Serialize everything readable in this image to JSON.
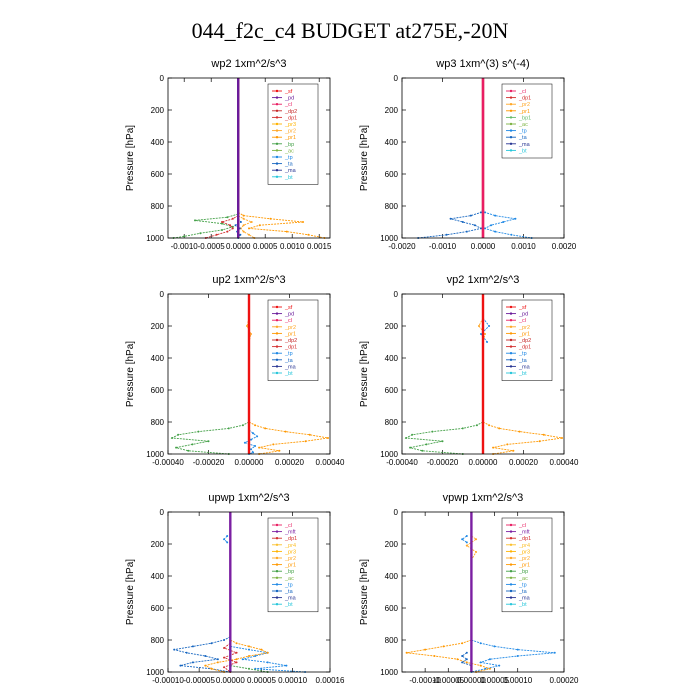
{
  "page": {
    "title": "044_f2c_c4  BUDGET at275E,-20N"
  },
  "colors": {
    "sf": "#ee1111",
    "pd": "#6a1b9a",
    "cl": "#e91e63",
    "dp1": "#d32f2f",
    "dp2": "#c62828",
    "pr1": "#ff9800",
    "pr2": "#ffa726",
    "pr3": "#ffb300",
    "pr4": "#fbc02d",
    "bp": "#43a047",
    "bp1": "#66bb6a",
    "ac": "#7cb342",
    "tp": "#1e88e5",
    "ta": "#1565c0",
    "ma": "#283593",
    "bt": "#26c6da",
    "mft": "#7b1fa2"
  },
  "chart_data": [
    {
      "id": "wp2",
      "type": "line",
      "title": "wp2   1xm^2/s^3",
      "ylabel": "Pressure [hPa]",
      "xlim": [
        -0.0013,
        0.0017
      ],
      "ylim": [
        1000,
        0
      ],
      "xticks": [
        "-0.0010",
        "-0.0005",
        "0.0000",
        "0.0005",
        "0.0010",
        "0.0015"
      ],
      "xtick_values": [
        -0.001,
        -0.0005,
        0,
        0.0005,
        0.001,
        0.0015
      ],
      "yticks": [
        0,
        200,
        400,
        600,
        800,
        1000
      ],
      "legend": [
        "_sf",
        "_pd",
        "_cl",
        "_dp2",
        "_dp1",
        "_pr3",
        "_pr2",
        "_pr1",
        "_bp",
        "_ac",
        "_tp",
        "_ta",
        "_ma",
        "_bt"
      ],
      "series": [
        {
          "key": "pr1",
          "y": [
            840,
            860,
            880,
            900,
            920,
            940,
            960,
            980,
            1000
          ],
          "x": [
            0,
            0.0001,
            0.0006,
            0.0012,
            0.0004,
            0.0002,
            0.0009,
            0.0013,
            0.0016
          ]
        },
        {
          "key": "bp",
          "y": [
            850,
            870,
            890,
            910,
            930,
            950,
            970,
            990,
            1000
          ],
          "x": [
            0,
            -0.0002,
            -0.0008,
            -0.0003,
            -0.0001,
            -0.0003,
            -0.0007,
            -0.001,
            -0.0012
          ]
        },
        {
          "key": "dp1",
          "y": [
            860,
            880,
            900,
            920,
            940,
            960,
            980,
            1000
          ],
          "x": [
            0,
            -0.0001,
            -0.0003,
            -0.00015,
            -0.0001,
            -0.0002,
            -0.0004,
            -0.0006
          ]
        },
        {
          "key": "pr2",
          "y": [
            860,
            880,
            900,
            920,
            940,
            960,
            980,
            1000
          ],
          "x": [
            0,
            0.0001,
            0.00025,
            0.0001,
            5e-05,
            0.0001,
            0.0002,
            0.0003
          ]
        },
        {
          "key": "ta",
          "y": [
            880,
            900,
            920,
            940,
            960,
            980,
            1000
          ],
          "x": [
            0,
            5e-05,
            -5e-05,
            3e-05,
            -2e-05,
            4e-05,
            0
          ]
        },
        {
          "key": "sf",
          "y": [
            0,
            200,
            400,
            600,
            800,
            1000
          ],
          "x": [
            0,
            0,
            0,
            0,
            0,
            0
          ]
        },
        {
          "key": "pd",
          "y": [
            0,
            200,
            400,
            600,
            800,
            1000
          ],
          "x": [
            0,
            0,
            0,
            0,
            0,
            0
          ]
        }
      ]
    },
    {
      "id": "wp3",
      "type": "line",
      "title": "wp3   1xm^(3) s^(-4)",
      "ylabel": "Pressure [hPa]",
      "xlim": [
        -0.002,
        0.002
      ],
      "ylim": [
        1000,
        0
      ],
      "xticks": [
        "-0.0020",
        "-0.0010",
        "0.0000",
        "0.0010",
        "0.0020"
      ],
      "xtick_values": [
        -0.002,
        -0.001,
        0,
        0.001,
        0.002
      ],
      "yticks": [
        0,
        200,
        400,
        600,
        800,
        1000
      ],
      "legend": [
        "_cl",
        "_dp1",
        "_pr2",
        "_pr1",
        "_bp1",
        "_ac",
        "_tp",
        "_ta",
        "_ma",
        "_bt"
      ],
      "series": [
        {
          "key": "tp",
          "y": [
            820,
            840,
            860,
            880,
            900,
            920,
            940,
            960,
            980,
            1000
          ],
          "x": [
            0,
            5e-05,
            0.0003,
            0.0008,
            0.0005,
            0.0002,
            5e-05,
            0.0003,
            0.0007,
            0.0012
          ]
        },
        {
          "key": "ta",
          "y": [
            820,
            840,
            860,
            880,
            900,
            920,
            940,
            960,
            980,
            1000
          ],
          "x": [
            0,
            -5e-05,
            -0.0003,
            -0.0008,
            -0.0005,
            -0.0002,
            -5e-05,
            -0.0004,
            -0.0009,
            -0.0016
          ]
        },
        {
          "key": "dp1",
          "y": [
            0,
            200,
            400,
            600,
            800,
            1000
          ],
          "x": [
            0,
            0,
            0,
            0,
            0,
            0
          ]
        },
        {
          "key": "cl",
          "y": [
            0,
            200,
            400,
            600,
            800,
            1000
          ],
          "x": [
            0,
            0,
            0,
            0,
            0,
            0
          ]
        }
      ]
    },
    {
      "id": "up2",
      "type": "line",
      "title": "up2   1xm^2/s^3",
      "ylabel": "Pressure [hPa]",
      "xlim": [
        -0.0004,
        0.0004
      ],
      "ylim": [
        1000,
        0
      ],
      "xticks": [
        "-0.00040",
        "-0.00020",
        "0.00000",
        "0.00020",
        "0.00040"
      ],
      "xtick_values": [
        -0.0004,
        -0.0002,
        0,
        0.0002,
        0.0004
      ],
      "yticks": [
        0,
        200,
        400,
        600,
        800,
        1000
      ],
      "legend": [
        "_sf",
        "_pd",
        "_cl",
        "_pr2",
        "_pr1",
        "_dp2",
        "_dp1",
        "_tp",
        "_ta",
        "_ma",
        "_bt"
      ],
      "series": [
        {
          "key": "bp",
          "y": [
            800,
            820,
            840,
            860,
            880,
            900,
            920,
            940,
            960,
            980,
            1000
          ],
          "x": [
            0,
            -3e-05,
            -0.0001,
            -0.00025,
            -0.00035,
            -0.00038,
            -0.0002,
            -0.00028,
            -0.00036,
            -0.0003,
            -0.0001
          ]
        },
        {
          "key": "pr1",
          "y": [
            800,
            820,
            840,
            860,
            880,
            900,
            920,
            940,
            960,
            980,
            1000
          ],
          "x": [
            0,
            3e-05,
            8e-05,
            0.00018,
            0.0003,
            0.00039,
            0.00028,
            0.00012,
            5e-05,
            0.00015,
            5e-05
          ]
        },
        {
          "key": "tp",
          "y": [
            850,
            870,
            890,
            910,
            930,
            950,
            970,
            990,
            1000
          ],
          "x": [
            0,
            2e-05,
            4e-05,
            1e-05,
            -2e-05,
            3e-05,
            1e-05,
            2e-05,
            0
          ]
        },
        {
          "key": "pr2",
          "y": [
            150,
            200,
            250,
            300
          ],
          "x": [
            0,
            -1e-05,
            1e-05,
            0
          ]
        },
        {
          "key": "sf",
          "y": [
            0,
            200,
            400,
            600,
            800,
            1000
          ],
          "x": [
            0,
            0,
            0,
            0,
            0,
            0
          ]
        }
      ]
    },
    {
      "id": "vp2",
      "type": "line",
      "title": "vp2   1xm^2/s^3",
      "ylabel": "Pressure [hPa]",
      "xlim": [
        -0.0004,
        0.0004
      ],
      "ylim": [
        1000,
        0
      ],
      "xticks": [
        "-0.00040",
        "-0.00020",
        "0.00000",
        "0.00020",
        "0.00040"
      ],
      "xtick_values": [
        -0.0004,
        -0.0002,
        0,
        0.0002,
        0.0004
      ],
      "yticks": [
        0,
        200,
        400,
        600,
        800,
        1000
      ],
      "legend": [
        "_sf",
        "_pd",
        "_cl",
        "_pr2",
        "_pr1",
        "_dp2",
        "_dp1",
        "_tp",
        "_ta",
        "_ma",
        "_bt"
      ],
      "series": [
        {
          "key": "bp",
          "y": [
            800,
            820,
            840,
            860,
            880,
            900,
            920,
            940,
            960,
            980,
            1000
          ],
          "x": [
            0,
            -3e-05,
            -0.0001,
            -0.00025,
            -0.00035,
            -0.00038,
            -0.0002,
            -0.00028,
            -0.00036,
            -0.0003,
            -0.0001
          ]
        },
        {
          "key": "pr1",
          "y": [
            800,
            820,
            840,
            860,
            880,
            900,
            920,
            940,
            960,
            980,
            1000
          ],
          "x": [
            0,
            3e-05,
            8e-05,
            0.00018,
            0.0003,
            0.00039,
            0.00028,
            0.00012,
            5e-05,
            0.00015,
            5e-05
          ]
        },
        {
          "key": "tp",
          "y": [
            150,
            200,
            250,
            300
          ],
          "x": [
            0,
            3e-05,
            -1e-05,
            2e-05
          ]
        },
        {
          "key": "pr2",
          "y": [
            150,
            200,
            250,
            300
          ],
          "x": [
            0,
            -2e-05,
            1e-05,
            0
          ]
        },
        {
          "key": "sf",
          "y": [
            0,
            200,
            400,
            600,
            800,
            1000
          ],
          "x": [
            0,
            0,
            0,
            0,
            0,
            0
          ]
        }
      ]
    },
    {
      "id": "upwp",
      "type": "line",
      "title": "upwp   1xm^2/s^3",
      "ylabel": "Pressure [hPa]",
      "xlim": [
        -0.0001,
        0.00016
      ],
      "ylim": [
        1000,
        0
      ],
      "xticks": [
        "-0.00010",
        "-0.00005",
        "0.00000",
        "0.00005",
        "0.00010",
        "0.00016"
      ],
      "xtick_values": [
        -0.0001,
        -5e-05,
        0,
        5e-05,
        0.0001,
        0.00016
      ],
      "yticks": [
        0,
        200,
        400,
        600,
        800,
        1000
      ],
      "legend": [
        "_cl",
        "_mft",
        "_dp1",
        "_pr4",
        "_pr3",
        "_pr2",
        "_pr1",
        "_bp",
        "_ac",
        "_tp",
        "_ta",
        "_ma",
        "_bt"
      ],
      "series": [
        {
          "key": "ta",
          "y": [
            780,
            800,
            820,
            840,
            860,
            880,
            900,
            920,
            940,
            960,
            980,
            1000
          ],
          "x": [
            0,
            -1e-05,
            -3e-05,
            -6e-05,
            -9e-05,
            -7e-05,
            -4e-05,
            -2e-05,
            -6e-05,
            -8e-05,
            -3e-05,
            0
          ]
        },
        {
          "key": "tp",
          "y": [
            840,
            860,
            880,
            900,
            920,
            940,
            960,
            980,
            1000
          ],
          "x": [
            0,
            3e-05,
            6e-05,
            4e-05,
            2e-05,
            6e-05,
            9e-05,
            4e-05,
            0.00012
          ]
        },
        {
          "key": "pr1",
          "y": [
            800,
            820,
            840,
            860,
            880,
            900,
            920,
            940,
            960,
            980,
            1000
          ],
          "x": [
            0,
            1e-05,
            3e-05,
            5e-05,
            6e-05,
            3e-05,
            1e-05,
            -2e-05,
            -4e-05,
            -3e-05,
            -1e-05
          ]
        },
        {
          "key": "dp1",
          "y": [
            820,
            850,
            880,
            910,
            940,
            970,
            1000
          ],
          "x": [
            0,
            -1e-05,
            1e-05,
            -1e-05,
            1e-05,
            -1e-05,
            0
          ]
        },
        {
          "key": "bp",
          "y": [
            960,
            980,
            1000
          ],
          "x": [
            0,
            3e-05,
            6e-05
          ]
        },
        {
          "key": "tp",
          "y": [
            150,
            170,
            190
          ],
          "x": [
            -5e-06,
            -1e-05,
            -5e-06
          ]
        },
        {
          "key": "mft",
          "y": [
            0,
            200,
            400,
            600,
            800,
            1000
          ],
          "x": [
            0,
            0,
            0,
            0,
            0,
            0
          ]
        }
      ]
    },
    {
      "id": "vpwp",
      "type": "line",
      "title": "vpwp   1xm^2/s^3",
      "ylabel": "Pressure [hPa]",
      "xlim": [
        -0.00015,
        0.0002
      ],
      "ylim": [
        1000,
        0
      ],
      "xticks": [
        "-0.00010",
        "-0.00005",
        "0.00000",
        "0.00005",
        "0.00010",
        "0.00020"
      ],
      "xtick_values": [
        -0.0001,
        -5e-05,
        0,
        5e-05,
        0.0001,
        0.0002
      ],
      "yticks": [
        0,
        200,
        400,
        600,
        800,
        1000
      ],
      "legend": [
        "_cl",
        "_mft",
        "_dp1",
        "_pr4",
        "_pr3",
        "_pr2",
        "_pr1",
        "_bp",
        "_ac",
        "_tp",
        "_ta",
        "_ma",
        "_bt"
      ],
      "series": [
        {
          "key": "tp",
          "y": [
            800,
            820,
            840,
            860,
            880,
            900,
            920,
            940,
            960,
            980,
            1000
          ],
          "x": [
            0,
            2e-05,
            5e-05,
            0.0001,
            0.00018,
            0.0001,
            4e-05,
            2e-05,
            6e-05,
            3e-05,
            0
          ]
        },
        {
          "key": "pr1",
          "y": [
            800,
            820,
            840,
            860,
            880,
            900,
            920,
            940,
            960,
            980,
            1000
          ],
          "x": [
            0,
            -2e-05,
            -6e-05,
            -0.0001,
            -0.00014,
            -8e-05,
            -3e-05,
            -1e-05,
            2e-05,
            4e-05,
            1e-05
          ]
        },
        {
          "key": "pr2",
          "y": [
            150,
            170,
            190,
            210,
            250,
            300
          ],
          "x": [
            0,
            1e-05,
            0,
            -1e-05,
            1e-05,
            0
          ]
        },
        {
          "key": "tp",
          "y": [
            150,
            170,
            190
          ],
          "x": [
            -1e-05,
            -2e-05,
            -1e-05
          ]
        },
        {
          "key": "ta",
          "y": [
            880,
            900,
            920,
            940,
            960
          ],
          "x": [
            -1e-05,
            -2e-05,
            -1e-05,
            -2e-05,
            0
          ]
        },
        {
          "key": "mft",
          "y": [
            0,
            200,
            400,
            600,
            800,
            1000
          ],
          "x": [
            0,
            0,
            0,
            0,
            0,
            0
          ]
        }
      ]
    }
  ]
}
